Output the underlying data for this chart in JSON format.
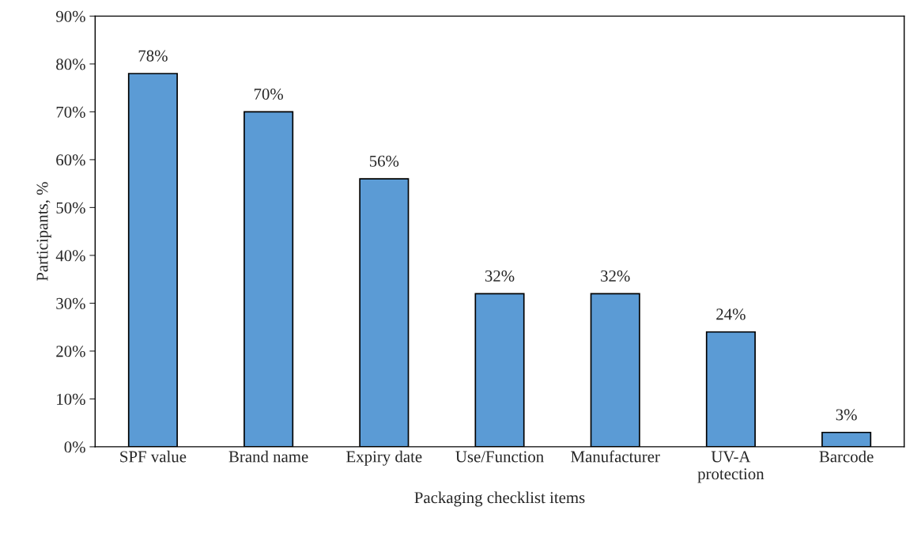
{
  "chart_data": {
    "type": "bar",
    "xlabel": "Packaging checklist items",
    "ylabel": "Participants, %",
    "categories": [
      "SPF value",
      "Brand name",
      "Expiry date",
      "Use/Function",
      "Manufacturer",
      "UV-A\nprotection",
      "Barcode"
    ],
    "values": [
      78,
      70,
      56,
      32,
      32,
      24,
      3
    ],
    "value_labels": [
      "78%",
      "70%",
      "56%",
      "32%",
      "32%",
      "24%",
      "3%"
    ],
    "color": "#5b9bd5",
    "ylim": [
      0,
      90
    ],
    "yticks": [
      {
        "value": 0,
        "label": "0%"
      },
      {
        "value": 10,
        "label": "10%"
      },
      {
        "value": 20,
        "label": "20%"
      },
      {
        "value": 30,
        "label": "30%"
      },
      {
        "value": 40,
        "label": "40%"
      },
      {
        "value": 50,
        "label": "50%"
      },
      {
        "value": 60,
        "label": "60%"
      },
      {
        "value": 70,
        "label": "70%"
      },
      {
        "value": 80,
        "label": "80%"
      },
      {
        "value": 90,
        "label": "90%"
      }
    ],
    "grid": false,
    "legend": false
  }
}
